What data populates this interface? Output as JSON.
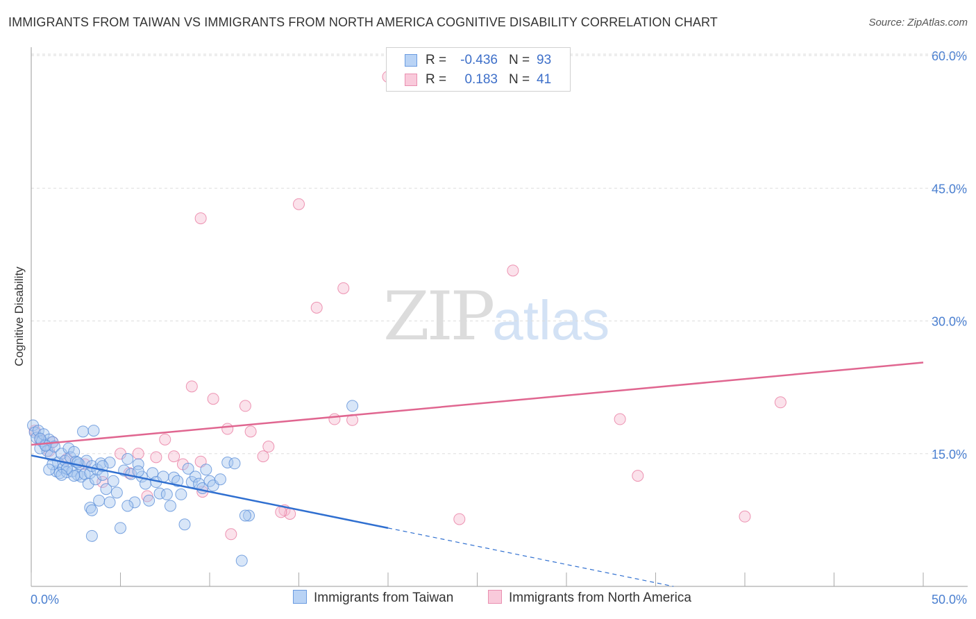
{
  "header": {
    "title": "IMMIGRANTS FROM TAIWAN VS IMMIGRANTS FROM NORTH AMERICA COGNITIVE DISABILITY CORRELATION CHART",
    "source": "Source: ZipAtlas.com"
  },
  "watermark": {
    "zip": "ZIP",
    "atlas": "atlas"
  },
  "legend": {
    "r_label": "R =",
    "n_label": "N =",
    "rows": [
      {
        "r": "-0.436",
        "n": "93"
      },
      {
        "r": "0.183",
        "n": "41"
      }
    ]
  },
  "colors": {
    "series1": "#5b8fd8",
    "series1_fill": "#a9c7f0",
    "series2": "#e87aa0",
    "series2_fill": "#f7bfd2",
    "tick_text": "#4a7fd0",
    "grid": "#dddddd"
  },
  "chart_data": {
    "type": "scatter",
    "title": "IMMIGRANTS FROM TAIWAN VS IMMIGRANTS FROM NORTH AMERICA COGNITIVE DISABILITY CORRELATION CHART",
    "xlabel": "",
    "ylabel": "Cognitive Disability",
    "xlim": [
      0,
      50
    ],
    "ylim": [
      0,
      60
    ],
    "x_tick_labels": [
      "0.0%",
      "50.0%"
    ],
    "y_ticks": [
      15,
      30,
      45,
      60
    ],
    "y_tick_labels": [
      "15.0%",
      "30.0%",
      "45.0%",
      "60.0%"
    ],
    "grid": true,
    "legend_position": "bottom",
    "series": [
      {
        "name": "Immigrants from Taiwan",
        "r": -0.436,
        "n": 93,
        "trend": {
          "x0": 0,
          "y0": 14.8,
          "x1": 20,
          "y1": 6.6,
          "dash_to_x": 36,
          "dash_to_y": 0
        },
        "points": [
          [
            0.1,
            18.2
          ],
          [
            0.2,
            17.4
          ],
          [
            0.3,
            16.8
          ],
          [
            0.4,
            17.6
          ],
          [
            0.5,
            15.6
          ],
          [
            0.6,
            16.4
          ],
          [
            0.7,
            17.2
          ],
          [
            0.8,
            16.0
          ],
          [
            0.9,
            15.3
          ],
          [
            1.0,
            16.6
          ],
          [
            1.1,
            14.8
          ],
          [
            1.2,
            16.3
          ],
          [
            1.3,
            15.8
          ],
          [
            1.4,
            13.0
          ],
          [
            1.5,
            14.0
          ],
          [
            1.6,
            12.8
          ],
          [
            1.7,
            15.0
          ],
          [
            1.8,
            13.4
          ],
          [
            1.9,
            14.2
          ],
          [
            2.0,
            12.9
          ],
          [
            2.1,
            15.6
          ],
          [
            2.2,
            14.6
          ],
          [
            2.3,
            13.0
          ],
          [
            2.4,
            15.2
          ],
          [
            2.5,
            14.1
          ],
          [
            2.6,
            12.6
          ],
          [
            2.7,
            13.8
          ],
          [
            2.8,
            12.4
          ],
          [
            2.9,
            17.5
          ],
          [
            3.0,
            12.7
          ],
          [
            3.1,
            14.2
          ],
          [
            3.2,
            11.6
          ],
          [
            3.3,
            12.8
          ],
          [
            3.4,
            13.6
          ],
          [
            3.5,
            17.6
          ],
          [
            3.6,
            12.1
          ],
          [
            3.7,
            13.2
          ],
          [
            3.8,
            9.7
          ],
          [
            3.9,
            13.9
          ],
          [
            4.0,
            12.6
          ],
          [
            4.2,
            11.0
          ],
          [
            4.4,
            14.0
          ],
          [
            4.6,
            11.9
          ],
          [
            4.8,
            10.6
          ],
          [
            5.0,
            6.6
          ],
          [
            5.2,
            13.1
          ],
          [
            5.4,
            14.4
          ],
          [
            5.6,
            12.7
          ],
          [
            5.8,
            9.5
          ],
          [
            6.0,
            13.8
          ],
          [
            6.2,
            12.4
          ],
          [
            6.4,
            11.6
          ],
          [
            6.6,
            9.7
          ],
          [
            6.8,
            12.8
          ],
          [
            7.0,
            11.8
          ],
          [
            7.2,
            10.5
          ],
          [
            7.4,
            12.4
          ],
          [
            7.6,
            10.4
          ],
          [
            7.8,
            9.1
          ],
          [
            8.0,
            12.3
          ],
          [
            8.2,
            11.9
          ],
          [
            8.4,
            10.4
          ],
          [
            8.6,
            7.0
          ],
          [
            8.8,
            13.3
          ],
          [
            9.0,
            11.8
          ],
          [
            9.2,
            12.4
          ],
          [
            9.4,
            11.6
          ],
          [
            9.6,
            11.1
          ],
          [
            9.8,
            13.2
          ],
          [
            10.0,
            11.9
          ],
          [
            10.2,
            11.4
          ],
          [
            10.6,
            12.1
          ],
          [
            11.0,
            14.0
          ],
          [
            11.4,
            13.9
          ],
          [
            11.8,
            2.9
          ],
          [
            12.2,
            8.0
          ],
          [
            3.3,
            8.9
          ],
          [
            3.4,
            8.6
          ],
          [
            4.4,
            9.5
          ],
          [
            5.4,
            9.1
          ],
          [
            2.4,
            12.5
          ],
          [
            2.0,
            13.3
          ],
          [
            1.7,
            12.6
          ],
          [
            1.2,
            13.8
          ],
          [
            0.8,
            15.9
          ],
          [
            0.5,
            16.7
          ],
          [
            2.6,
            14.0
          ],
          [
            4.0,
            13.6
          ],
          [
            6.0,
            13.0
          ],
          [
            18.0,
            20.4
          ],
          [
            12.0,
            8.0
          ],
          [
            3.4,
            5.7
          ],
          [
            1.0,
            13.2
          ]
        ]
      },
      {
        "name": "Immigrants from North America",
        "r": 0.183,
        "n": 41,
        "trend": {
          "x0": 0,
          "y0": 16.0,
          "x1": 50,
          "y1": 25.3
        },
        "points": [
          [
            0.2,
            17.6
          ],
          [
            0.5,
            16.6
          ],
          [
            1.0,
            15.3
          ],
          [
            2.0,
            14.4
          ],
          [
            3.0,
            13.8
          ],
          [
            4.0,
            11.8
          ],
          [
            5.0,
            15.0
          ],
          [
            5.5,
            12.8
          ],
          [
            6.0,
            15.0
          ],
          [
            6.5,
            10.2
          ],
          [
            7.0,
            14.6
          ],
          [
            7.5,
            16.6
          ],
          [
            8.0,
            14.7
          ],
          [
            8.5,
            13.8
          ],
          [
            9.0,
            22.6
          ],
          [
            9.5,
            14.1
          ],
          [
            9.5,
            41.6
          ],
          [
            9.6,
            10.7
          ],
          [
            10.2,
            21.2
          ],
          [
            11.0,
            17.8
          ],
          [
            11.2,
            5.9
          ],
          [
            12.0,
            20.4
          ],
          [
            12.3,
            17.5
          ],
          [
            13.0,
            14.7
          ],
          [
            13.3,
            15.8
          ],
          [
            14.2,
            8.6
          ],
          [
            14.5,
            8.2
          ],
          [
            15.0,
            43.2
          ],
          [
            16.0,
            31.5
          ],
          [
            17.0,
            18.9
          ],
          [
            17.5,
            33.7
          ],
          [
            18.0,
            18.8
          ],
          [
            20.0,
            57.6
          ],
          [
            24.0,
            7.6
          ],
          [
            27.0,
            35.7
          ],
          [
            33.0,
            18.9
          ],
          [
            34.0,
            12.5
          ],
          [
            40.0,
            7.9
          ],
          [
            42.0,
            20.8
          ],
          [
            14.0,
            8.4
          ],
          [
            1.2,
            16.3
          ]
        ]
      }
    ]
  }
}
